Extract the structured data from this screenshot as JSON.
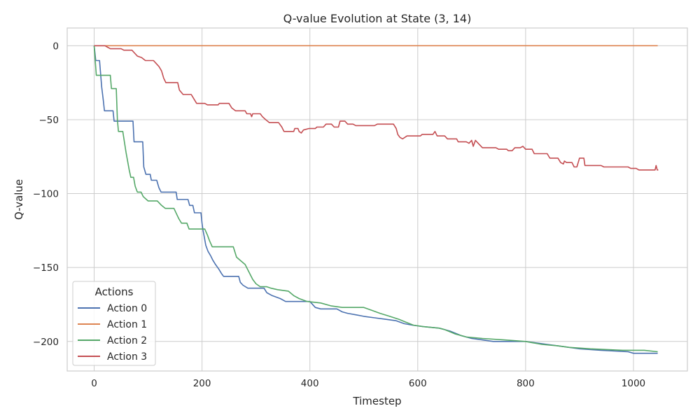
{
  "chart_data": {
    "type": "line",
    "title": "Q-value Evolution at State (3, 14)",
    "xlabel": "Timestep",
    "ylabel": "Q-value",
    "xlim": [
      -50,
      1100
    ],
    "ylim": [
      -220,
      12
    ],
    "xticks": [
      0,
      200,
      400,
      600,
      800,
      1000
    ],
    "yticks": [
      0,
      -50,
      -100,
      -150,
      -200
    ],
    "xtick_labels": [
      "0",
      "200",
      "400",
      "600",
      "800",
      "1000"
    ],
    "ytick_labels": [
      "0",
      "−50",
      "−100",
      "−150",
      "−200"
    ],
    "grid": true,
    "legend": {
      "title": "Actions",
      "position": "lower-left"
    },
    "series": [
      {
        "name": "Action 0",
        "color": "#4c72b0",
        "points": [
          [
            0,
            0
          ],
          [
            3,
            -10
          ],
          [
            10,
            -10
          ],
          [
            14,
            -28
          ],
          [
            17,
            -37
          ],
          [
            19,
            -44
          ],
          [
            35,
            -44
          ],
          [
            37,
            -51
          ],
          [
            72,
            -51
          ],
          [
            74,
            -65
          ],
          [
            90,
            -65
          ],
          [
            92,
            -82
          ],
          [
            96,
            -87
          ],
          [
            104,
            -87
          ],
          [
            106,
            -91
          ],
          [
            116,
            -91
          ],
          [
            120,
            -96
          ],
          [
            124,
            -99
          ],
          [
            152,
            -99
          ],
          [
            154,
            -104
          ],
          [
            174,
            -104
          ],
          [
            177,
            -108
          ],
          [
            183,
            -108
          ],
          [
            186,
            -113
          ],
          [
            198,
            -113
          ],
          [
            200,
            -120
          ],
          [
            202,
            -125
          ],
          [
            204,
            -129
          ],
          [
            207,
            -135
          ],
          [
            211,
            -139
          ],
          [
            216,
            -142
          ],
          [
            220,
            -145
          ],
          [
            225,
            -148
          ],
          [
            231,
            -151
          ],
          [
            236,
            -154
          ],
          [
            240,
            -156
          ],
          [
            268,
            -156
          ],
          [
            271,
            -160
          ],
          [
            276,
            -162
          ],
          [
            285,
            -164
          ],
          [
            315,
            -164
          ],
          [
            320,
            -167
          ],
          [
            330,
            -169
          ],
          [
            345,
            -171
          ],
          [
            355,
            -173
          ],
          [
            400,
            -173
          ],
          [
            410,
            -177
          ],
          [
            420,
            -178
          ],
          [
            450,
            -178
          ],
          [
            460,
            -180
          ],
          [
            470,
            -181
          ],
          [
            485,
            -182
          ],
          [
            500,
            -183
          ],
          [
            520,
            -184
          ],
          [
            540,
            -185
          ],
          [
            560,
            -186
          ],
          [
            575,
            -188
          ],
          [
            590,
            -189
          ],
          [
            610,
            -190
          ],
          [
            640,
            -191
          ],
          [
            660,
            -193
          ],
          [
            680,
            -196
          ],
          [
            700,
            -198
          ],
          [
            720,
            -199
          ],
          [
            740,
            -200
          ],
          [
            800,
            -200
          ],
          [
            820,
            -201
          ],
          [
            840,
            -202
          ],
          [
            860,
            -203
          ],
          [
            880,
            -204
          ],
          [
            900,
            -205
          ],
          [
            940,
            -206
          ],
          [
            990,
            -207
          ],
          [
            1000,
            -208
          ],
          [
            1045,
            -208
          ]
        ]
      },
      {
        "name": "Action 1",
        "color": "#dd8452",
        "points": [
          [
            0,
            0
          ],
          [
            1045,
            0
          ]
        ]
      },
      {
        "name": "Action 2",
        "color": "#55a868",
        "points": [
          [
            0,
            0
          ],
          [
            4,
            -20
          ],
          [
            30,
            -20
          ],
          [
            32,
            -29
          ],
          [
            41,
            -29
          ],
          [
            43,
            -50
          ],
          [
            45,
            -58
          ],
          [
            53,
            -58
          ],
          [
            56,
            -65
          ],
          [
            59,
            -72
          ],
          [
            62,
            -78
          ],
          [
            65,
            -84
          ],
          [
            68,
            -89
          ],
          [
            73,
            -89
          ],
          [
            76,
            -95
          ],
          [
            80,
            -99
          ],
          [
            87,
            -99
          ],
          [
            91,
            -102
          ],
          [
            100,
            -105
          ],
          [
            117,
            -105
          ],
          [
            125,
            -108
          ],
          [
            132,
            -110
          ],
          [
            148,
            -110
          ],
          [
            153,
            -114
          ],
          [
            157,
            -117
          ],
          [
            162,
            -120
          ],
          [
            172,
            -120
          ],
          [
            176,
            -124
          ],
          [
            205,
            -124
          ],
          [
            210,
            -128
          ],
          [
            214,
            -132
          ],
          [
            219,
            -136
          ],
          [
            258,
            -136
          ],
          [
            264,
            -143
          ],
          [
            280,
            -148
          ],
          [
            287,
            -153
          ],
          [
            294,
            -158
          ],
          [
            300,
            -161
          ],
          [
            308,
            -163
          ],
          [
            320,
            -163
          ],
          [
            328,
            -164
          ],
          [
            340,
            -165
          ],
          [
            360,
            -166
          ],
          [
            370,
            -169
          ],
          [
            380,
            -171
          ],
          [
            395,
            -173
          ],
          [
            420,
            -174
          ],
          [
            440,
            -176
          ],
          [
            460,
            -177
          ],
          [
            500,
            -177
          ],
          [
            515,
            -179
          ],
          [
            530,
            -181
          ],
          [
            548,
            -183
          ],
          [
            565,
            -185
          ],
          [
            578,
            -187
          ],
          [
            592,
            -189
          ],
          [
            610,
            -190
          ],
          [
            640,
            -191
          ],
          [
            650,
            -192
          ],
          [
            670,
            -195
          ],
          [
            690,
            -197
          ],
          [
            720,
            -198
          ],
          [
            760,
            -199
          ],
          [
            800,
            -200
          ],
          [
            830,
            -202
          ],
          [
            860,
            -203
          ],
          [
            880,
            -204
          ],
          [
            920,
            -205
          ],
          [
            980,
            -206
          ],
          [
            1020,
            -206
          ],
          [
            1045,
            -207
          ]
        ]
      },
      {
        "name": "Action 3",
        "color": "#c44e52",
        "points": [
          [
            0,
            0
          ],
          [
            20,
            0
          ],
          [
            25,
            -1
          ],
          [
            30,
            -2
          ],
          [
            50,
            -2
          ],
          [
            55,
            -3
          ],
          [
            70,
            -3
          ],
          [
            75,
            -5
          ],
          [
            80,
            -7
          ],
          [
            88,
            -8
          ],
          [
            95,
            -10
          ],
          [
            110,
            -10
          ],
          [
            115,
            -12
          ],
          [
            120,
            -14
          ],
          [
            125,
            -17
          ],
          [
            129,
            -22
          ],
          [
            133,
            -25
          ],
          [
            155,
            -25
          ],
          [
            158,
            -30
          ],
          [
            165,
            -33
          ],
          [
            180,
            -33
          ],
          [
            185,
            -36
          ],
          [
            190,
            -39
          ],
          [
            205,
            -39
          ],
          [
            210,
            -40
          ],
          [
            230,
            -40
          ],
          [
            232,
            -39
          ],
          [
            250,
            -39
          ],
          [
            255,
            -42
          ],
          [
            262,
            -44
          ],
          [
            280,
            -44
          ],
          [
            283,
            -46
          ],
          [
            290,
            -46
          ],
          [
            292,
            -48
          ],
          [
            294,
            -46
          ],
          [
            308,
            -46
          ],
          [
            312,
            -48
          ],
          [
            318,
            -50
          ],
          [
            325,
            -52
          ],
          [
            342,
            -52
          ],
          [
            348,
            -55
          ],
          [
            352,
            -58
          ],
          [
            370,
            -58
          ],
          [
            372,
            -56
          ],
          [
            378,
            -56
          ],
          [
            380,
            -58
          ],
          [
            384,
            -59
          ],
          [
            388,
            -57
          ],
          [
            398,
            -56
          ],
          [
            410,
            -56
          ],
          [
            413,
            -55
          ],
          [
            425,
            -55
          ],
          [
            430,
            -53
          ],
          [
            440,
            -53
          ],
          [
            445,
            -55
          ],
          [
            453,
            -55
          ],
          [
            456,
            -51
          ],
          [
            465,
            -51
          ],
          [
            470,
            -53
          ],
          [
            480,
            -53
          ],
          [
            485,
            -54
          ],
          [
            520,
            -54
          ],
          [
            525,
            -53
          ],
          [
            555,
            -53
          ],
          [
            560,
            -56
          ],
          [
            563,
            -60
          ],
          [
            567,
            -62
          ],
          [
            572,
            -63
          ],
          [
            580,
            -61
          ],
          [
            605,
            -61
          ],
          [
            608,
            -60
          ],
          [
            628,
            -60
          ],
          [
            632,
            -58
          ],
          [
            636,
            -61
          ],
          [
            650,
            -61
          ],
          [
            655,
            -63
          ],
          [
            672,
            -63
          ],
          [
            675,
            -65
          ],
          [
            690,
            -65
          ],
          [
            695,
            -66
          ],
          [
            700,
            -64
          ],
          [
            703,
            -68
          ],
          [
            707,
            -64
          ],
          [
            712,
            -66
          ],
          [
            720,
            -69
          ],
          [
            745,
            -69
          ],
          [
            750,
            -70
          ],
          [
            765,
            -70
          ],
          [
            768,
            -71
          ],
          [
            775,
            -71
          ],
          [
            780,
            -69
          ],
          [
            790,
            -69
          ],
          [
            795,
            -68
          ],
          [
            800,
            -70
          ],
          [
            812,
            -70
          ],
          [
            816,
            -73
          ],
          [
            840,
            -73
          ],
          [
            845,
            -76
          ],
          [
            860,
            -76
          ],
          [
            865,
            -79
          ],
          [
            870,
            -80
          ],
          [
            872,
            -78
          ],
          [
            876,
            -79
          ],
          [
            886,
            -79
          ],
          [
            890,
            -82
          ],
          [
            895,
            -82
          ],
          [
            900,
            -76
          ],
          [
            908,
            -76
          ],
          [
            910,
            -81
          ],
          [
            940,
            -81
          ],
          [
            945,
            -82
          ],
          [
            990,
            -82
          ],
          [
            995,
            -83
          ],
          [
            1005,
            -83
          ],
          [
            1010,
            -84
          ],
          [
            1025,
            -84
          ],
          [
            1040,
            -84
          ],
          [
            1042,
            -81
          ],
          [
            1044,
            -84
          ],
          [
            1046,
            -84
          ]
        ]
      }
    ]
  }
}
